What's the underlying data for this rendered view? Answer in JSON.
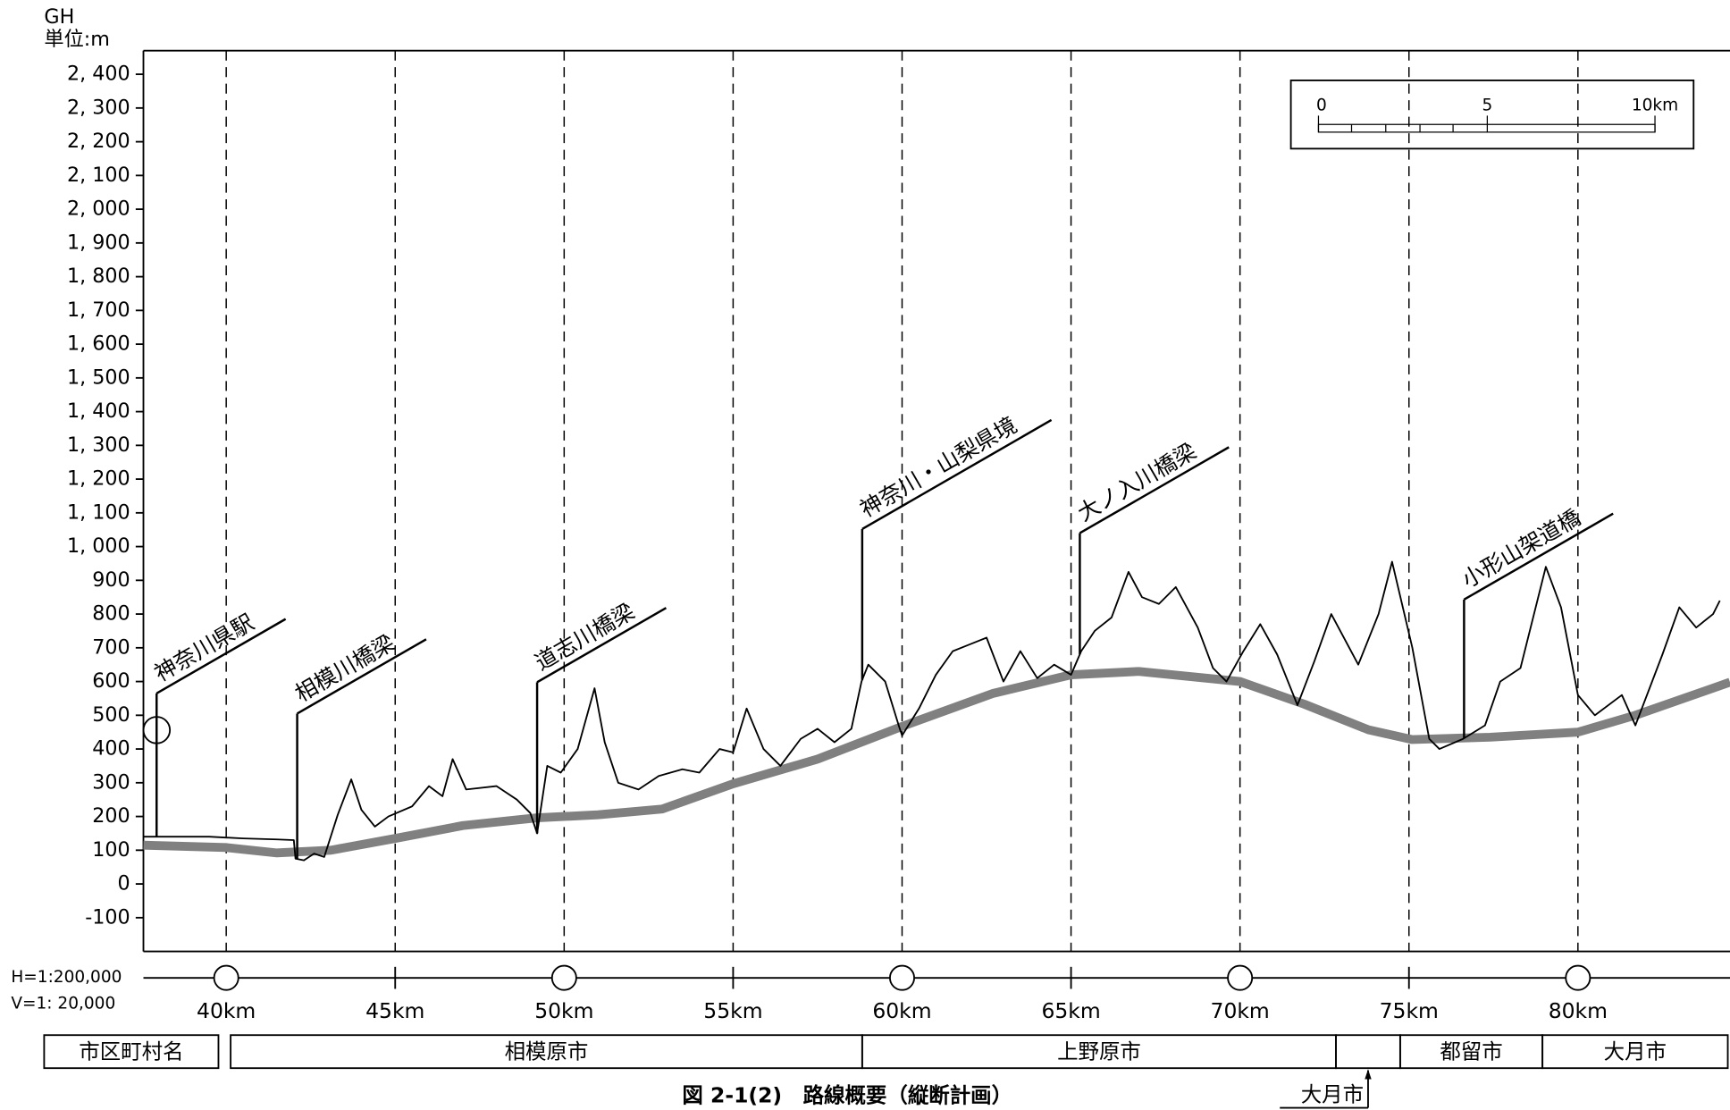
{
  "chart_data": {
    "type": "line",
    "y_title": "GH",
    "y_unit": "単位:m",
    "xlim": [
      37.55,
      84.5
    ],
    "ylim": [
      -200,
      2470
    ],
    "xticks": [
      {
        "value": 40,
        "label": "40km"
      },
      {
        "value": 45,
        "label": "45km"
      },
      {
        "value": 50,
        "label": "50km"
      },
      {
        "value": 55,
        "label": "55km"
      },
      {
        "value": 60,
        "label": "60km"
      },
      {
        "value": 65,
        "label": "65km"
      },
      {
        "value": 70,
        "label": "70km"
      },
      {
        "value": 75,
        "label": "75km"
      },
      {
        "value": 80,
        "label": "80km"
      }
    ],
    "yticks": [
      -100,
      0,
      100,
      200,
      300,
      400,
      500,
      600,
      700,
      800,
      900,
      {
        "value": 1000,
        "label": "1, 000"
      },
      {
        "value": 1100,
        "label": "1, 100"
      },
      {
        "value": 1200,
        "label": "1, 200"
      },
      {
        "value": 1300,
        "label": "1, 300"
      },
      {
        "value": 1400,
        "label": "1, 400"
      },
      {
        "value": 1500,
        "label": "1, 500"
      },
      {
        "value": 1600,
        "label": "1, 600"
      },
      {
        "value": 1700,
        "label": "1, 700"
      },
      {
        "value": 1800,
        "label": "1, 800"
      },
      {
        "value": 1900,
        "label": "1, 900"
      },
      {
        "value": 2000,
        "label": "2, 000"
      },
      {
        "value": 2100,
        "label": "2, 100"
      },
      {
        "value": 2200,
        "label": "2, 200"
      },
      {
        "value": 2300,
        "label": "2, 300"
      },
      {
        "value": 2400,
        "label": "2, 400"
      }
    ],
    "grid": true,
    "series": [
      {
        "color": "#000000",
        "width": 1.5,
        "x": [
          37.55,
          39.5,
          40.5,
          41.5,
          42.0,
          42.05,
          42.3,
          42.6,
          42.9,
          43.3,
          43.7,
          44.0,
          44.4,
          44.8,
          45.5,
          46.0,
          46.4,
          46.7,
          47.1,
          48.0,
          48.6,
          49.0,
          49.2,
          49.5,
          49.9,
          50.4,
          50.9,
          51.2,
          51.6,
          52.2,
          52.8,
          53.5,
          54.0,
          54.6,
          55.0,
          55.4,
          55.9,
          56.4,
          57.0,
          57.5,
          58.0,
          58.5,
          58.8,
          59.0,
          59.5,
          59.9,
          60.0,
          60.5,
          61.0,
          61.5,
          62.0,
          62.5,
          63.0,
          63.5,
          64.0,
          64.5,
          65.0,
          65.3,
          65.7,
          66.2,
          66.7,
          67.1,
          67.6,
          68.1,
          68.75,
          69.2,
          69.6,
          70.1,
          70.6,
          71.1,
          71.7,
          72.2,
          72.7,
          73.5,
          74.1,
          74.5,
          75.1,
          75.6,
          75.9,
          76.6,
          77.25,
          77.7,
          78.3,
          78.7,
          79.05,
          79.5,
          80.0,
          80.5,
          81.3,
          81.7,
          82.5,
          83.0,
          83.5,
          84.0,
          84.2
        ],
        "values": [
          140,
          140,
          135,
          132,
          130,
          75,
          70,
          90,
          80,
          205,
          310,
          220,
          170,
          200,
          230,
          290,
          260,
          370,
          280,
          290,
          250,
          210,
          150,
          350,
          330,
          400,
          580,
          420,
          300,
          280,
          320,
          340,
          330,
          400,
          390,
          520,
          400,
          350,
          430,
          460,
          420,
          460,
          600,
          650,
          600,
          470,
          440,
          520,
          620,
          690,
          710,
          730,
          600,
          690,
          610,
          650,
          620,
          690,
          750,
          790,
          925,
          850,
          830,
          880,
          760,
          640,
          600,
          690,
          770,
          680,
          530,
          660,
          800,
          650,
          800,
          955,
          700,
          430,
          400,
          430,
          470,
          600,
          640,
          800,
          940,
          820,
          560,
          500,
          560,
          470,
          680,
          820,
          760,
          800,
          840
        ]
      },
      {
        "color": "#808080",
        "width": 8,
        "x": [
          37.55,
          40,
          41.5,
          43.1,
          45,
          47,
          49.2,
          51,
          52.9,
          55,
          57.5,
          60,
          62.7,
          65,
          67,
          70,
          71.9,
          73.8,
          75.1,
          77.4,
          80,
          81.7,
          84.5
        ],
        "values": [
          115,
          108,
          92,
          100,
          135,
          173,
          196,
          205,
          222,
          297,
          370,
          467,
          565,
          620,
          630,
          600,
          533,
          457,
          428,
          435,
          450,
          500,
          598
        ]
      }
    ],
    "annotations": [
      {
        "text": "神奈川県駅",
        "x": 37.94,
        "y": 565
      },
      {
        "text": "相模川橋梁",
        "x": 42.1,
        "y": 505
      },
      {
        "text": "道志川橋梁",
        "x": 49.2,
        "y": 598
      },
      {
        "text": "神奈川・山梨県境",
        "x": 58.82,
        "y": 1052
      },
      {
        "text": "大ノ入川橋梁",
        "x": 65.26,
        "y": 1040
      },
      {
        "text": "小形山架道橋",
        "x": 76.63,
        "y": 843
      }
    ],
    "scale_bar": {
      "labels": [
        "0",
        "5",
        "10km"
      ]
    },
    "h_scale": "H=1:200,000",
    "v_scale": "V=1: 20,000",
    "municipality_header": "市区町村名",
    "municipalities": [
      {
        "name": "相模原市",
        "from": 40,
        "to": 58.82
      },
      {
        "name": "上野原市",
        "from": 58.82,
        "to": 72.84
      },
      {
        "name": "大月市",
        "from": 72.84,
        "to": 74.74
      },
      {
        "name": "都留市",
        "from": 74.74,
        "to": 78.95
      },
      {
        "name": "大月市",
        "from": 78.95,
        "to": 84.5
      }
    ],
    "caption": "図 2-1(2)　路線概要（縦断計画）"
  }
}
